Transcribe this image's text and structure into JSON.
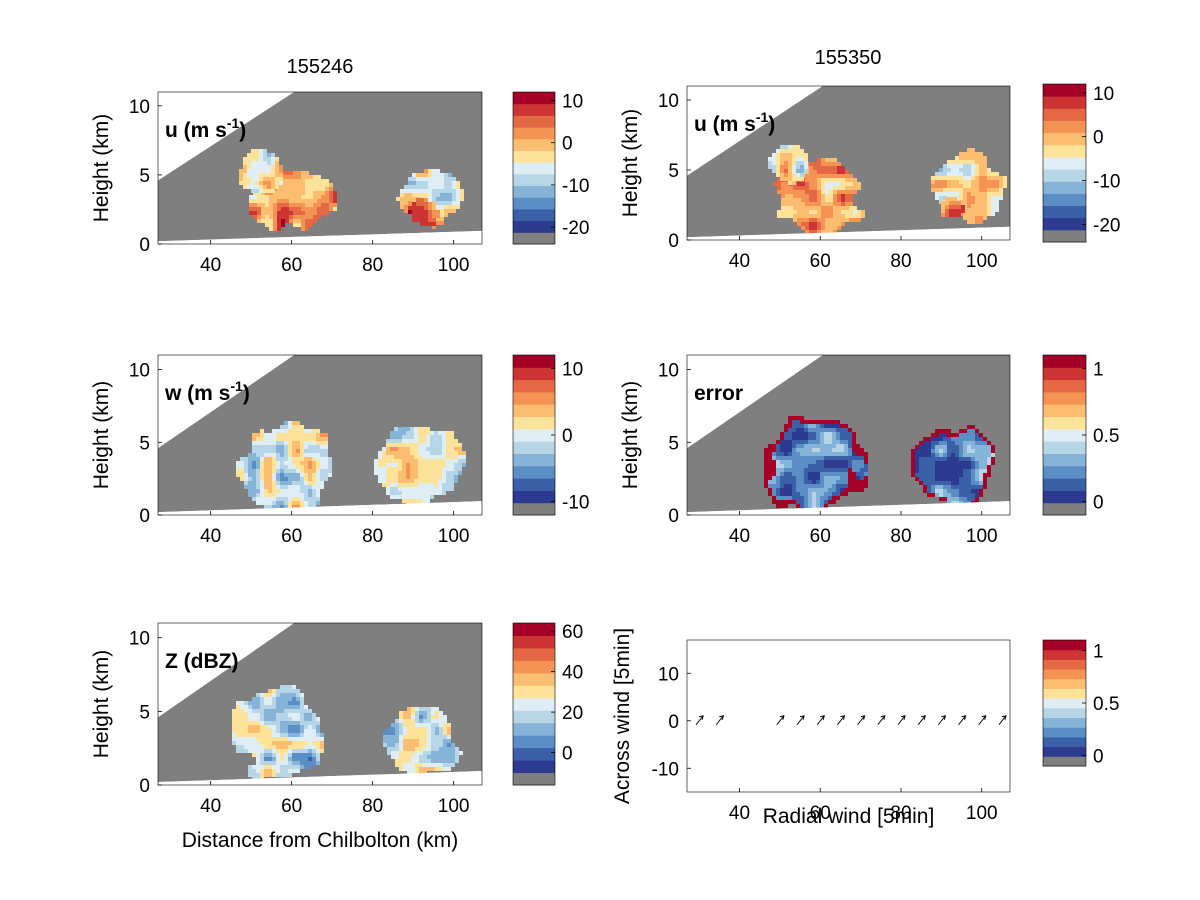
{
  "figure": {
    "column_titles": [
      "155246",
      "155350"
    ],
    "y_label": "Height (km)",
    "x_label": "Distance from Chilbolton (km)"
  },
  "chart_data": [
    {
      "type": "heatmap",
      "panel": "u-155246",
      "title": "155246",
      "annotation": "u (m s",
      "annotation_sup": "-1",
      "annotation_tail": ")",
      "ylabel": "Height (km)",
      "xlim": [
        27,
        107
      ],
      "ylim": [
        0,
        11
      ],
      "xticks": [
        40,
        60,
        80,
        100
      ],
      "yticks": [
        0,
        5,
        10
      ],
      "colorbar": {
        "min": -24,
        "max": 12,
        "step": 3,
        "ticks": [
          10,
          0,
          -10,
          -20
        ],
        "labels": [
          "10",
          "0",
          "-10",
          "-20"
        ]
      },
      "fields": [
        {
          "cx": 60,
          "cy": 3.2,
          "rx": 10,
          "ry": 2.2,
          "value": 2
        },
        {
          "cx": 52,
          "cy": 5.3,
          "rx": 5,
          "ry": 1.5,
          "value": -4
        },
        {
          "cx": 94,
          "cy": 3.6,
          "rx": 8,
          "ry": 2.0,
          "value": -4
        },
        {
          "cx": 92,
          "cy": 2.4,
          "rx": 3.5,
          "ry": 1.0,
          "value": 2
        }
      ]
    },
    {
      "type": "heatmap",
      "panel": "u-155350",
      "title": "155350",
      "annotation": "u (m s",
      "annotation_sup": "-1",
      "annotation_tail": ")",
      "ylabel": "Height (km)",
      "xlim": [
        27,
        107
      ],
      "ylim": [
        0,
        11
      ],
      "xticks": [
        40,
        60,
        80,
        100
      ],
      "yticks": [
        0,
        5,
        10
      ],
      "colorbar": {
        "min": -24,
        "max": 12,
        "step": 3,
        "ticks": [
          10,
          0,
          -10,
          -20
        ],
        "labels": [
          "10",
          "0",
          "-10",
          "-20"
        ]
      },
      "fields": [
        {
          "cx": 59,
          "cy": 3.3,
          "rx": 11,
          "ry": 2.6,
          "value": 2
        },
        {
          "cx": 52,
          "cy": 5.8,
          "rx": 5,
          "ry": 1.5,
          "value": -4
        },
        {
          "cx": 96,
          "cy": 4.0,
          "rx": 9,
          "ry": 2.6,
          "value": -4
        },
        {
          "cx": 92,
          "cy": 2.4,
          "rx": 3.5,
          "ry": 1.0,
          "value": 2
        }
      ]
    },
    {
      "type": "heatmap",
      "panel": "w-155246",
      "annotation": "w (m s",
      "annotation_sup": "-1",
      "annotation_tail": ")",
      "ylabel": "Height (km)",
      "xlim": [
        27,
        107
      ],
      "ylim": [
        0,
        11
      ],
      "xticks": [
        40,
        60,
        80,
        100
      ],
      "yticks": [
        0,
        5,
        10
      ],
      "colorbar": {
        "min": -12,
        "max": 12,
        "step": 2,
        "ticks": [
          10,
          0,
          -10
        ],
        "labels": [
          "10",
          "0",
          "-10"
        ]
      },
      "fields": [
        {
          "cx": 58,
          "cy": 3.4,
          "rx": 11,
          "ry": 3.0,
          "value": 0
        },
        {
          "cx": 91,
          "cy": 3.5,
          "rx": 10,
          "ry": 2.8,
          "value": 0
        }
      ]
    },
    {
      "type": "heatmap",
      "panel": "error-155350",
      "annotation": "error",
      "ylabel": "Height (km)",
      "xlim": [
        27,
        107
      ],
      "ylim": [
        0,
        11
      ],
      "xticks": [
        40,
        60,
        80,
        100
      ],
      "yticks": [
        0,
        5,
        10
      ],
      "colorbar": {
        "min": -0.1,
        "max": 1.1,
        "step": 0.1,
        "ticks": [
          1,
          0.5,
          0
        ],
        "labels": [
          "1",
          "0.5",
          "0"
        ]
      },
      "fields": [
        {
          "cx": 58,
          "cy": 3.5,
          "rx": 12,
          "ry": 3.2,
          "value": 0.2
        },
        {
          "cx": 93,
          "cy": 3.6,
          "rx": 10,
          "ry": 2.8,
          "value": 0.2
        }
      ]
    },
    {
      "type": "heatmap",
      "panel": "Z-155246",
      "annotation": "Z (dBZ)",
      "ylabel": "Height (km)",
      "xlabel": "Distance from Chilbolton (km)",
      "xlim": [
        27,
        107
      ],
      "ylim": [
        0,
        11
      ],
      "xticks": [
        40,
        60,
        80,
        100
      ],
      "yticks": [
        0,
        5,
        10
      ],
      "colorbar": {
        "min": -16,
        "max": 64,
        "step": 6.667,
        "ticks": [
          60,
          40,
          20,
          0
        ],
        "labels": [
          "60",
          "40",
          "20",
          "0"
        ]
      },
      "fields": [
        {
          "cx": 57,
          "cy": 3.6,
          "rx": 11,
          "ry": 3.3,
          "value": 20
        },
        {
          "cx": 92,
          "cy": 3.2,
          "rx": 9,
          "ry": 2.6,
          "value": 20
        }
      ]
    },
    {
      "type": "scatter",
      "panel": "wind-vectors",
      "xlabel": "Radial wind [5min]",
      "ylabel": "Across wind [5min]",
      "xlim": [
        27,
        107
      ],
      "ylim": [
        -15,
        17
      ],
      "xticks": [
        40,
        60,
        80,
        100
      ],
      "yticks": [
        10,
        0,
        -10
      ],
      "x": [
        30,
        35,
        50,
        55,
        60,
        65,
        70,
        75,
        80,
        85,
        90,
        95,
        100,
        105
      ],
      "y": [
        0,
        0,
        0,
        0,
        0,
        0,
        0,
        0,
        0,
        0,
        0,
        0,
        0,
        0
      ],
      "colorbar": {
        "min": -0.1,
        "max": 1.1,
        "step": 0.1,
        "ticks": [
          1,
          0.5,
          0
        ],
        "labels": [
          "1",
          "0.5",
          "0"
        ]
      }
    }
  ]
}
